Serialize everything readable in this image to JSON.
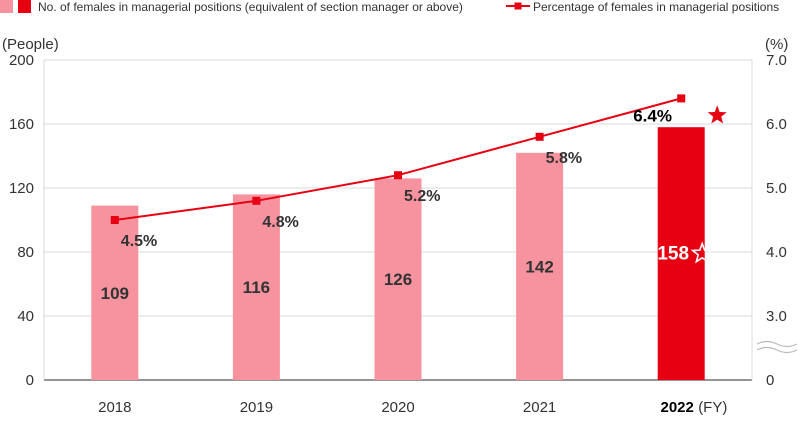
{
  "chart_data": {
    "type": "bar",
    "legend": {
      "bar_label": "No. of females in managerial positions (equivalent of section manager or above)",
      "line_label": "Percentage of females in managerial positions",
      "placement": "top"
    },
    "left_axis": {
      "unit": "(People)",
      "ylim": [
        0,
        200
      ],
      "ticks": [
        "0",
        "40",
        "80",
        "120",
        "160",
        "200"
      ]
    },
    "right_axis": {
      "unit": "(%)",
      "ticks": [
        "0",
        "3.0",
        "4.0",
        "5.0",
        "6.0",
        "7.0"
      ],
      "broken": true
    },
    "categories": [
      "2018",
      "2019",
      "2020",
      "2021",
      "2022"
    ],
    "x_suffix": "(FY)",
    "series": [
      {
        "name": "No. of females in managerial positions (equivalent of section manager or above)",
        "type": "bar",
        "values": [
          109,
          116,
          126,
          142,
          158
        ],
        "labels": [
          "109",
          "116",
          "126",
          "142",
          "158"
        ],
        "color": "#f6939f",
        "highlight_color": "#e60012"
      },
      {
        "name": "Percentage of females in managerial positions",
        "type": "line",
        "values": [
          4.5,
          4.8,
          5.2,
          5.8,
          6.4
        ],
        "labels": [
          "4.5%",
          "4.8%",
          "5.2%",
          "5.8%",
          "6.4%"
        ],
        "color": "#e60012"
      }
    ],
    "highlight_index": 4,
    "highlight_icon": "star-icon",
    "grid": true
  }
}
